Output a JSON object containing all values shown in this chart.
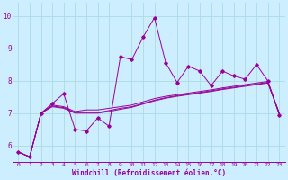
{
  "bg_color": "#cceeff",
  "line_color": "#990099",
  "grid_color": "#aadddd",
  "xlabel": "Windchill (Refroidissement éolien,°C)",
  "x_ticks": [
    0,
    1,
    2,
    3,
    4,
    5,
    6,
    7,
    8,
    9,
    10,
    11,
    12,
    13,
    14,
    15,
    16,
    17,
    18,
    19,
    20,
    21,
    22,
    23
  ],
  "ylim": [
    5.5,
    10.4
  ],
  "xlim": [
    -0.5,
    23.5
  ],
  "yticks": [
    6,
    7,
    8,
    9,
    10
  ],
  "series_main": [
    5.8,
    5.65,
    7.0,
    7.3,
    7.6,
    6.5,
    6.45,
    6.85,
    6.6,
    8.75,
    8.65,
    9.35,
    9.95,
    8.55,
    7.95,
    8.45,
    8.3,
    7.85,
    8.3,
    8.15,
    8.05,
    8.5,
    8.0,
    6.95
  ],
  "series_trend1": [
    5.8,
    5.65,
    7.0,
    7.25,
    7.2,
    7.05,
    7.1,
    7.1,
    7.15,
    7.2,
    7.25,
    7.35,
    7.45,
    7.52,
    7.57,
    7.62,
    7.67,
    7.72,
    7.78,
    7.83,
    7.88,
    7.93,
    7.98,
    7.0
  ],
  "series_trend2": [
    5.8,
    5.65,
    7.0,
    7.2,
    7.15,
    7.0,
    7.0,
    7.0,
    7.05,
    7.12,
    7.18,
    7.28,
    7.38,
    7.46,
    7.52,
    7.57,
    7.62,
    7.67,
    7.73,
    7.78,
    7.83,
    7.88,
    7.93,
    7.0
  ],
  "series_trend3": [
    5.8,
    5.65,
    7.0,
    7.22,
    7.17,
    7.02,
    7.02,
    7.02,
    7.08,
    7.15,
    7.2,
    7.3,
    7.4,
    7.48,
    7.54,
    7.59,
    7.64,
    7.69,
    7.75,
    7.8,
    7.85,
    7.9,
    7.95,
    7.0
  ]
}
